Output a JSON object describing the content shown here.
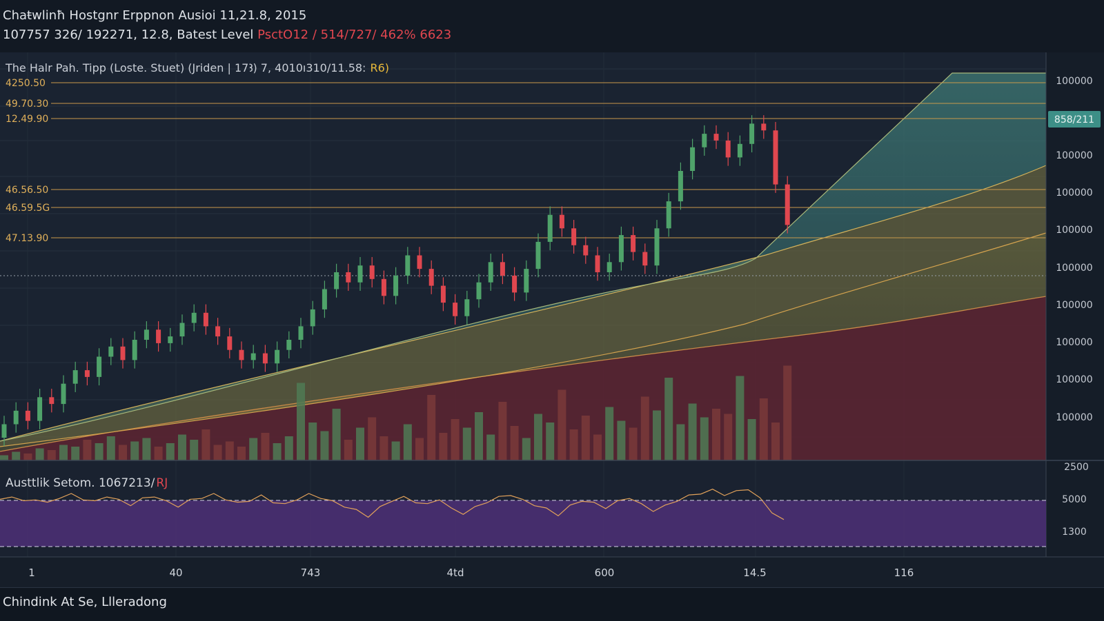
{
  "header": {
    "title": "Chaŧwlinħ Hostgnr Erppnon Ausioi 11,21.8, 2015",
    "subtitle_main": "107757 326/ 192271, 12.8, Batest Level",
    "subtitle_highlight": "PsctO12 / 514/727/ 462% 6623"
  },
  "chart_data": [
    {
      "type": "candlestick",
      "panel": "price",
      "label": "The Halr Pah. Tipp  (Loste. Stuet)  (Jriden | 17Ꜣ) 7, 4010ı310/11.58:",
      "label_highlight": "R6)",
      "price_badge": "858/211",
      "y_tick_labels": [
        "100000",
        "100000",
        "100000",
        "100000",
        "100000",
        "100000",
        "100000",
        "100000",
        "100000",
        "100000"
      ],
      "levels": [
        "4250.50",
        "49.70.30",
        "12.49.90",
        "46.56.50",
        "46.59.5G",
        "47.13.90"
      ],
      "candles": [
        {
          "open": 1,
          "close": 5
        },
        {
          "open": 5,
          "close": 9
        },
        {
          "open": 9,
          "close": 6
        },
        {
          "open": 6,
          "close": 13
        },
        {
          "open": 13,
          "close": 11
        },
        {
          "open": 11,
          "close": 17
        },
        {
          "open": 17,
          "close": 21
        },
        {
          "open": 21,
          "close": 19
        },
        {
          "open": 19,
          "close": 25
        },
        {
          "open": 25,
          "close": 28
        },
        {
          "open": 28,
          "close": 24
        },
        {
          "open": 24,
          "close": 30
        },
        {
          "open": 30,
          "close": 33
        },
        {
          "open": 33,
          "close": 29
        },
        {
          "open": 29,
          "close": 31
        },
        {
          "open": 31,
          "close": 35
        },
        {
          "open": 35,
          "close": 38
        },
        {
          "open": 38,
          "close": 34
        },
        {
          "open": 34,
          "close": 31
        },
        {
          "open": 31,
          "close": 27
        },
        {
          "open": 27,
          "close": 24
        },
        {
          "open": 24,
          "close": 26
        },
        {
          "open": 26,
          "close": 23
        },
        {
          "open": 23,
          "close": 27
        },
        {
          "open": 27,
          "close": 30
        },
        {
          "open": 30,
          "close": 34
        },
        {
          "open": 34,
          "close": 39
        },
        {
          "open": 39,
          "close": 45
        },
        {
          "open": 45,
          "close": 50
        },
        {
          "open": 50,
          "close": 47
        },
        {
          "open": 47,
          "close": 52
        },
        {
          "open": 52,
          "close": 48
        },
        {
          "open": 48,
          "close": 43
        },
        {
          "open": 43,
          "close": 49
        },
        {
          "open": 49,
          "close": 55
        },
        {
          "open": 55,
          "close": 51
        },
        {
          "open": 51,
          "close": 46
        },
        {
          "open": 46,
          "close": 41
        },
        {
          "open": 41,
          "close": 37
        },
        {
          "open": 37,
          "close": 42
        },
        {
          "open": 42,
          "close": 47
        },
        {
          "open": 47,
          "close": 53
        },
        {
          "open": 53,
          "close": 49
        },
        {
          "open": 49,
          "close": 44
        },
        {
          "open": 44,
          "close": 51
        },
        {
          "open": 51,
          "close": 59
        },
        {
          "open": 59,
          "close": 67
        },
        {
          "open": 67,
          "close": 63
        },
        {
          "open": 63,
          "close": 58
        },
        {
          "open": 58,
          "close": 55
        },
        {
          "open": 55,
          "close": 50
        },
        {
          "open": 50,
          "close": 53
        },
        {
          "open": 53,
          "close": 61
        },
        {
          "open": 61,
          "close": 56
        },
        {
          "open": 56,
          "close": 52
        },
        {
          "open": 52,
          "close": 63
        },
        {
          "open": 63,
          "close": 71
        },
        {
          "open": 71,
          "close": 80
        },
        {
          "open": 80,
          "close": 87
        },
        {
          "open": 87,
          "close": 91
        },
        {
          "open": 91,
          "close": 89
        },
        {
          "open": 89,
          "close": 84
        },
        {
          "open": 84,
          "close": 88
        },
        {
          "open": 88,
          "close": 94
        },
        {
          "open": 94,
          "close": 92
        },
        {
          "open": 92,
          "close": 76
        },
        {
          "open": 76,
          "close": 64
        }
      ],
      "volume": [
        3,
        5,
        4,
        7,
        6,
        9,
        8,
        12,
        10,
        14,
        9,
        11,
        13,
        8,
        10,
        15,
        12,
        18,
        9,
        11,
        8,
        13,
        16,
        10,
        14,
        45,
        22,
        17,
        30,
        12,
        19,
        25,
        14,
        11,
        21,
        13,
        38,
        16,
        24,
        19,
        28,
        15,
        34,
        20,
        13,
        27,
        22,
        41,
        18,
        26,
        15,
        31,
        23,
        19,
        37,
        29,
        48,
        21,
        33,
        25,
        30,
        27,
        49,
        24,
        36,
        22,
        55
      ],
      "x_tick_labels": [
        "1",
        "40",
        "743",
        "4td",
        "600",
        "14.5",
        "116"
      ]
    },
    {
      "type": "line",
      "panel": "oscillator",
      "label": "Austtlik Setom. 1067213/",
      "label_highlight": "RJ",
      "y_tick_labels": [
        "5000",
        "1300"
      ],
      "top_cut_label": "2500",
      "values": [
        72,
        78,
        70,
        74,
        68,
        76,
        80,
        74,
        70,
        78,
        72,
        66,
        74,
        78,
        70,
        64,
        72,
        76,
        80,
        74,
        68,
        72,
        78,
        70,
        66,
        74,
        80,
        76,
        70,
        64,
        58,
        50,
        62,
        72,
        76,
        70,
        66,
        74,
        60,
        54,
        62,
        70,
        76,
        80,
        72,
        66,
        60,
        52,
        64,
        72,
        68,
        62,
        70,
        76,
        66,
        58,
        64,
        72,
        78,
        82,
        86,
        80,
        84,
        88,
        74,
        56,
        44
      ]
    }
  ],
  "footer": {
    "text": "Chindink At Se, Llleradong"
  }
}
